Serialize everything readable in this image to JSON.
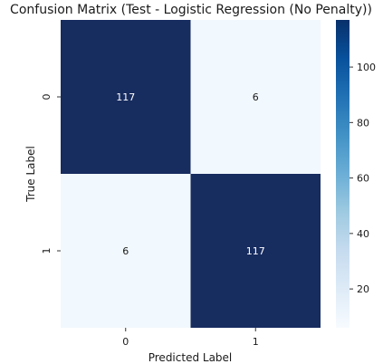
{
  "chart_data": {
    "type": "heatmap",
    "title": "Confusion Matrix (Test - Logistic Regression (No Penalty))",
    "xlabel": "Predicted Label",
    "ylabel": "True Label",
    "x_categories": [
      "0",
      "1"
    ],
    "y_categories": [
      "0",
      "1"
    ],
    "values": [
      [
        117,
        6
      ],
      [
        6,
        117
      ]
    ],
    "colormap": "Blues",
    "colorbar": {
      "ticks": [
        "20",
        "40",
        "60",
        "80",
        "100"
      ],
      "tick_values": [
        20,
        40,
        60,
        80,
        100
      ],
      "range": [
        6,
        117
      ]
    },
    "colors": {
      "low": "#f7fbff",
      "high": "#08306b",
      "cell_high": "#172c5f",
      "cell_low": "#f1f8fe",
      "annotation_on_dark": "#ffffff",
      "annotation_on_light": "#1a1a1a"
    }
  }
}
